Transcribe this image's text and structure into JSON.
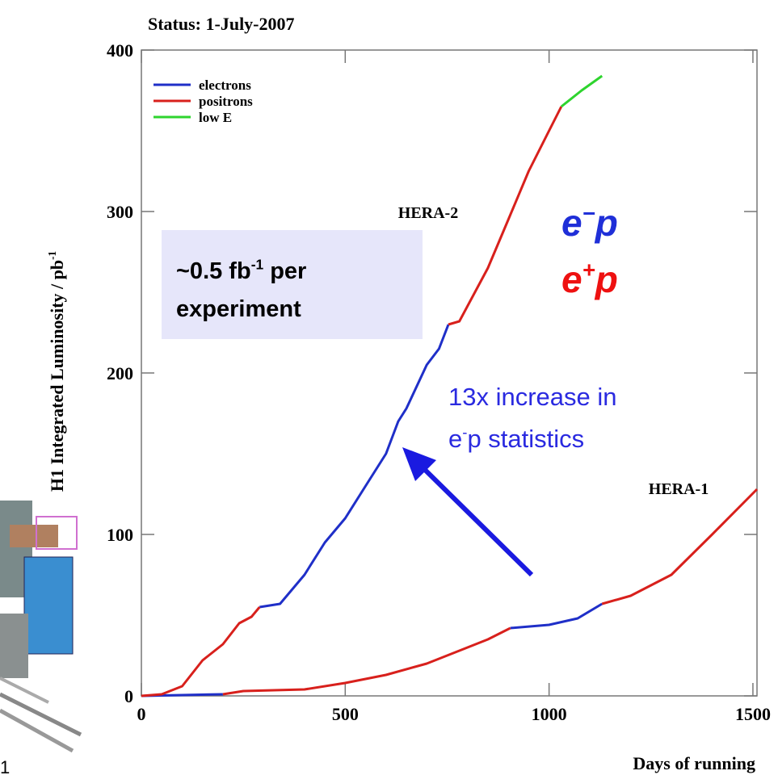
{
  "chart_data": {
    "type": "line",
    "title": "Status:  1-July-2007",
    "ylabel": [
      "H1 Integrated Luminosity / pb",
      "-1"
    ],
    "xlabel": "Days of running",
    "xlim": [
      0,
      1510
    ],
    "ylim": [
      0,
      400
    ],
    "xticks": [
      0,
      500,
      1000,
      1500
    ],
    "yticks": [
      0,
      100,
      200,
      300,
      400
    ],
    "legend": "upper left",
    "series": [
      {
        "name": "electrons",
        "color": "#1f2fc8",
        "x": [
          0,
          100,
          200,
          null,
          290,
          340,
          400,
          450,
          500,
          550,
          600,
          630,
          650,
          700,
          730,
          753,
          null,
          905,
          1000,
          1070,
          1130
        ],
        "values": [
          0,
          0.5,
          1,
          null,
          55,
          57,
          75,
          95,
          110,
          130,
          150,
          170,
          178,
          205,
          215,
          230,
          null,
          42,
          44,
          48,
          57
        ]
      },
      {
        "name": "positrons",
        "color": "#d8201c",
        "x": [
          0,
          50,
          100,
          150,
          200,
          240,
          270,
          290,
          null,
          753,
          780,
          850,
          900,
          950,
          1000,
          1030,
          null,
          200,
          250,
          400,
          500,
          600,
          700,
          800,
          850,
          905,
          null,
          1130,
          1200,
          1300,
          1400,
          1510
        ],
        "values": [
          0,
          1,
          6,
          22,
          32,
          45,
          49,
          55,
          null,
          230,
          232,
          265,
          295,
          325,
          350,
          365,
          null,
          1,
          3,
          4,
          8,
          13,
          20,
          30,
          35,
          42,
          null,
          57,
          62,
          75,
          100,
          128
        ]
      },
      {
        "name": "low E",
        "color": "#2ed42e",
        "x": [
          1030,
          1080,
          1130
        ],
        "values": [
          365,
          375,
          384
        ]
      }
    ],
    "curve_labels": [
      "HERA-2",
      "HERA-1"
    ],
    "box_text": [
      [
        "~0.5 fb",
        "-1",
        " per"
      ],
      [
        "experiment"
      ]
    ],
    "beam_labels": [
      {
        "parts": [
          "e",
          "−",
          "p"
        ],
        "color": "#1f2fd8"
      },
      {
        "parts": [
          "e",
          "+",
          "p"
        ],
        "color": "#ee1111"
      }
    ],
    "stats_text": [
      [
        "13x increase in"
      ],
      [
        "e",
        "-",
        "p statistics"
      ]
    ],
    "stats_color": "#2a2ae0"
  },
  "slide_number": "1"
}
